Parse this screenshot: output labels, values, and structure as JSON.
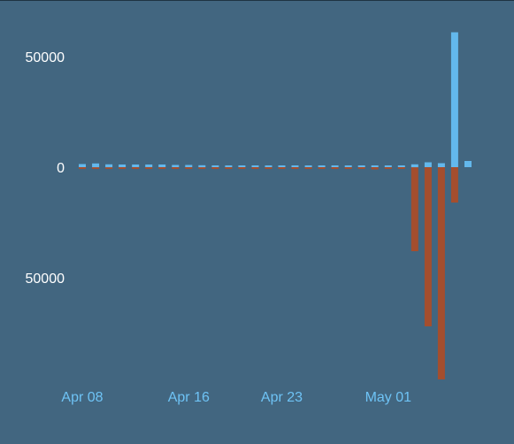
{
  "chart_data": {
    "type": "bar",
    "title": "",
    "xlabel": "",
    "ylabel": "",
    "grid": false,
    "legend": "none",
    "colors": {
      "positive": "#63b8ec",
      "negative": "#a44e2e",
      "background": "#426680",
      "x_tick_text": "#6ec3f5",
      "y_tick_text": "#ffffff"
    },
    "x_tick_labels": [
      "Apr 08",
      "Apr 16",
      "Apr 23",
      "May 01"
    ],
    "x_tick_dates": [
      "2024-04-08",
      "2024-04-16",
      "2024-04-23",
      "2024-05-01"
    ],
    "y_tick_labels": [
      "50000",
      "0",
      "50000"
    ],
    "y_tick_values": [
      50000,
      0,
      -50000
    ],
    "ylim": [
      -96000,
      63000
    ],
    "xlim": [
      "2024-04-07",
      "2024-05-08"
    ],
    "x": [
      "2024-04-08",
      "2024-04-09",
      "2024-04-10",
      "2024-04-11",
      "2024-04-12",
      "2024-04-13",
      "2024-04-14",
      "2024-04-15",
      "2024-04-16",
      "2024-04-17",
      "2024-04-18",
      "2024-04-19",
      "2024-04-20",
      "2024-04-21",
      "2024-04-22",
      "2024-04-23",
      "2024-04-24",
      "2024-04-25",
      "2024-04-26",
      "2024-04-27",
      "2024-04-28",
      "2024-04-29",
      "2024-04-30",
      "2024-05-01",
      "2024-05-02",
      "2024-05-03",
      "2024-05-04",
      "2024-05-05",
      "2024-05-06",
      "2024-05-07"
    ],
    "series": [
      {
        "role": "positive",
        "values": [
          1400,
          1700,
          1300,
          1200,
          1200,
          1200,
          1200,
          1000,
          1000,
          900,
          800,
          800,
          800,
          700,
          700,
          600,
          500,
          500,
          500,
          500,
          500,
          600,
          400,
          400,
          300,
          1300,
          2200,
          1800,
          61000,
          2800
        ]
      },
      {
        "role": "negative",
        "values": [
          -200,
          -200,
          -200,
          -200,
          -200,
          -200,
          -200,
          -200,
          -200,
          -200,
          -200,
          -200,
          -200,
          -200,
          -200,
          -200,
          -200,
          -200,
          -200,
          -200,
          -200,
          -800,
          -1000,
          -800,
          -600,
          -38000,
          -72000,
          -96000,
          -16000,
          0
        ]
      }
    ]
  }
}
